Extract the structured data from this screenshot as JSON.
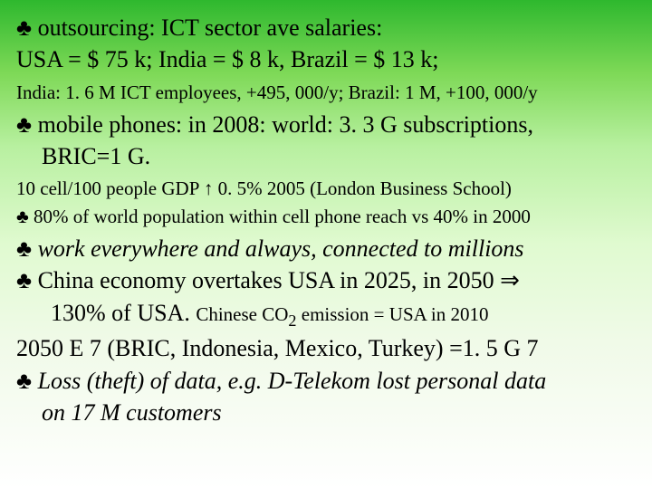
{
  "lines": {
    "l1": "♣ outsourcing: ICT sector ave salaries:",
    "l2": "USA = $ 75 k; India = $ 8 k, Brazil = $ 13 k;",
    "l3": "India: 1. 6 M ICT employees, +495, 000/y; Brazil: 1 M, +100, 000/y",
    "l4": "♣ mobile phones: in 2008: world: 3. 3 G subscriptions,",
    "l5": "BRIC=1 G.",
    "l6": "10 cell/100 people GDP ↑ 0. 5% 2005 (London Business School)",
    "l7": "♣ 80% of world population within cell phone reach vs 40% in 2000",
    "l8": "♣ work everywhere and always, connected to millions",
    "l9a": "♣ China economy overtakes USA in 2025, in 2050 ",
    "l9b": "⇒",
    "l10a": "130% of USA. ",
    "l10b": "Chinese CO",
    "l10c": "2",
    "l10d": " emission = USA in 2010",
    "l11": " 2050 E 7 (BRIC, Indonesia, Mexico, Turkey) =1. 5 G 7",
    "l12": "♣ Loss (theft) of data, e.g. D-Telekom lost personal data",
    "l13": "on 17 M customers"
  }
}
